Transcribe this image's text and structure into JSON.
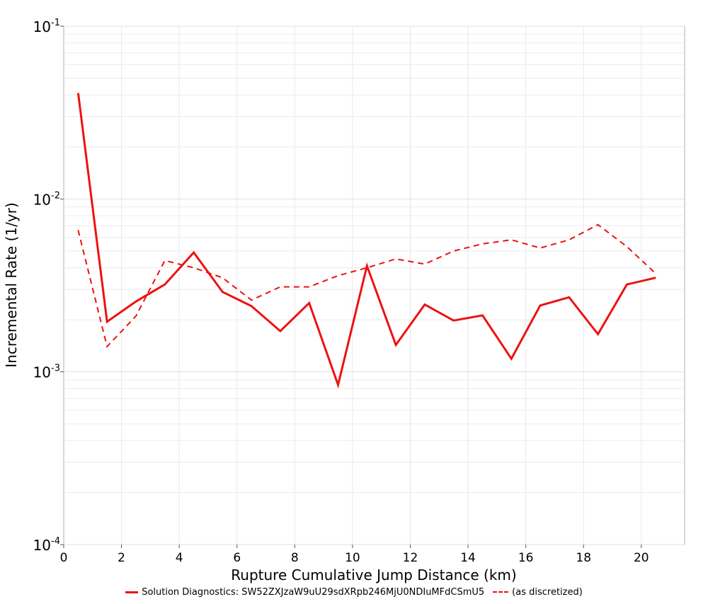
{
  "chart_data": {
    "type": "line",
    "title": "",
    "xlabel": "Rupture Cumulative Jump Distance (km)",
    "ylabel": "Incremental Rate (1/yr)",
    "xlim": [
      0,
      21.5
    ],
    "ylim": [
      0.0001,
      0.1
    ],
    "yscale": "log",
    "grid": true,
    "legend_position": "bottom",
    "x_ticks": [
      "0",
      "2",
      "4",
      "6",
      "8",
      "10",
      "12",
      "14",
      "16",
      "18",
      "20"
    ],
    "y_ticks": [
      {
        "base": "10",
        "exp": "-1",
        "value": 0.1
      },
      {
        "base": "10",
        "exp": "-2",
        "value": 0.01
      },
      {
        "base": "10",
        "exp": "-3",
        "value": 0.001
      },
      {
        "base": "10",
        "exp": "-4",
        "value": 0.0001
      }
    ],
    "series": [
      {
        "name": "Solution Diagnostics: SW52ZXJzaW9uU29sdXRpb246MjU0NDIuMFdCSmU5",
        "style": "solid",
        "color": "#ee1111",
        "x": [
          0.5,
          1.5,
          2.5,
          3.5,
          4.5,
          5.5,
          6.5,
          7.5,
          8.5,
          9.5,
          10.5,
          11.5,
          12.5,
          13.5,
          14.5,
          15.5,
          16.5,
          17.5,
          18.5,
          19.5,
          20.5
        ],
        "y": [
          0.041,
          0.00195,
          0.00255,
          0.0032,
          0.0049,
          0.0029,
          0.0024,
          0.00172,
          0.0025,
          0.00084,
          0.0041,
          0.00143,
          0.00245,
          0.00198,
          0.00212,
          0.00119,
          0.00242,
          0.0027,
          0.00165,
          0.0032,
          0.0035
        ]
      },
      {
        "name": "(as discretized)",
        "style": "dashed",
        "color": "#ee1111",
        "x": [
          0.5,
          1.5,
          2.5,
          3.5,
          4.5,
          5.5,
          6.5,
          7.5,
          8.5,
          9.5,
          10.5,
          11.5,
          12.5,
          13.5,
          14.5,
          15.5,
          16.5,
          17.5,
          18.5,
          19.5,
          20.5
        ],
        "y": [
          0.0066,
          0.0014,
          0.0021,
          0.0044,
          0.004,
          0.0035,
          0.0026,
          0.0031,
          0.0031,
          0.0036,
          0.004,
          0.0045,
          0.0042,
          0.005,
          0.0055,
          0.0058,
          0.0052,
          0.0058,
          0.0071,
          0.0053,
          0.0037
        ]
      }
    ]
  }
}
